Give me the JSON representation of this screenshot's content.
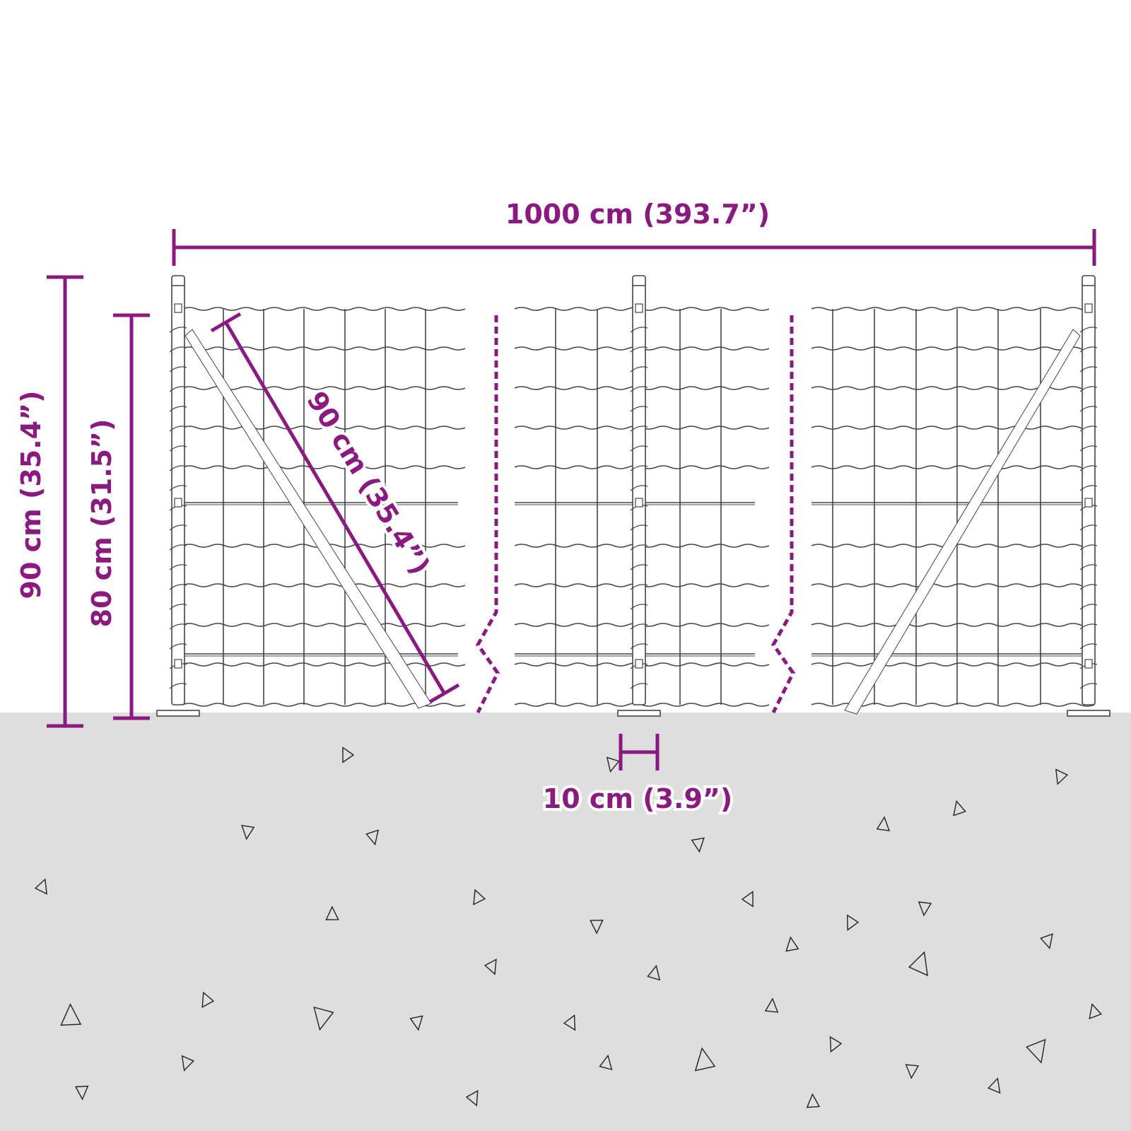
{
  "colors": {
    "dimension": "#8b1a80",
    "ground": "#dedede",
    "line": "#444444"
  },
  "dimensions": {
    "total_length": "1000 cm (393.7”)",
    "post_height": "90 cm (35.4”)",
    "fence_height": "80 cm (31.5”)",
    "brace_length": "90 cm (35.4”)",
    "post_depth": "10 cm (3.9”)"
  }
}
